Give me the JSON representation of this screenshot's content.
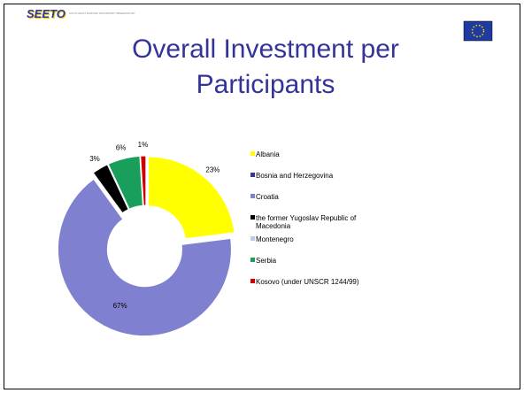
{
  "logo": {
    "name": "SEETO",
    "tagline": "SOUTH EAST EUROPE TRANSPORT OBSERVATORY"
  },
  "chart_data": {
    "type": "donut",
    "title": "Overall Investment per Participants",
    "categories": [
      "Albania",
      "Bosnia and Herzegovina",
      "Croatia",
      "the former Yugoslav Republic of Macedonia",
      "Montenegro",
      "Serbia",
      "Kosovo (under UNSCR 1244/99)"
    ],
    "values": [
      23,
      0,
      67,
      3,
      0,
      6,
      1
    ],
    "value_labels": [
      "23%",
      null,
      "67%",
      "3%",
      null,
      "6%",
      "1%"
    ],
    "colors": [
      "#ffff00",
      "#333399",
      "#8080d0",
      "#000000",
      "#c0c8e8",
      "#1a9e5c",
      "#cc0000"
    ],
    "legend": "right"
  }
}
